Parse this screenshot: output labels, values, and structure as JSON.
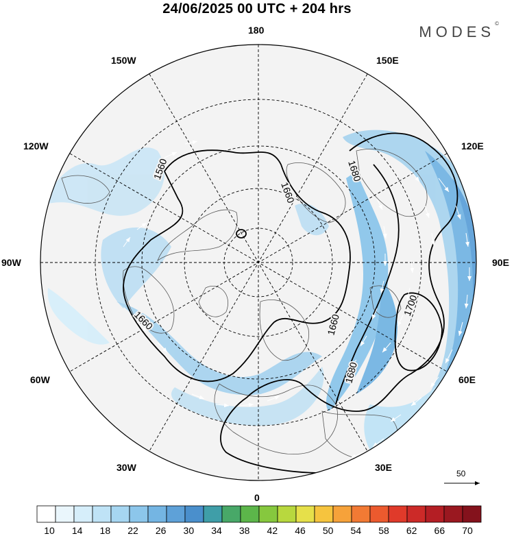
{
  "title": "24/06/2025  00 UTC  + 204 hrs",
  "brand": "MODES",
  "brand_mark": "©",
  "longitude_labels": {
    "top": "180",
    "bottom": "0",
    "left": "90W",
    "right": "90E",
    "upper_left_near": "150W",
    "upper_left_far": "120W",
    "upper_right_near": "150E",
    "upper_right_far": "120E",
    "lower_left_far": "60W",
    "lower_left_near": "30W",
    "lower_right_far": "60E",
    "lower_right_near": "30E"
  },
  "contours": [
    {
      "value": "1560"
    },
    {
      "value": "1660"
    },
    {
      "value": "1660"
    },
    {
      "value": "1660"
    },
    {
      "value": "1680"
    },
    {
      "value": "1680"
    },
    {
      "value": "1700"
    }
  ],
  "wind_reference": {
    "value": "50"
  },
  "colorbar": {
    "tick_labels": [
      "10",
      "14",
      "18",
      "22",
      "26",
      "30",
      "34",
      "38",
      "42",
      "46",
      "50",
      "54",
      "58",
      "62",
      "66",
      "70"
    ],
    "colors": [
      "#ffffff",
      "#eaf6fc",
      "#d6eefa",
      "#bfe3f6",
      "#a6d6f1",
      "#8cc6eb",
      "#74b5e3",
      "#5ea1d8",
      "#4a8fcc",
      "#3f9ea8",
      "#48a868",
      "#5cb64a",
      "#86c83e",
      "#b8d83e",
      "#e6e04a",
      "#f6c43e",
      "#f6a23a",
      "#f27a34",
      "#ec5a2e",
      "#e03a2a",
      "#cc2a28",
      "#b41e24",
      "#9a1820",
      "#84121c"
    ]
  }
}
